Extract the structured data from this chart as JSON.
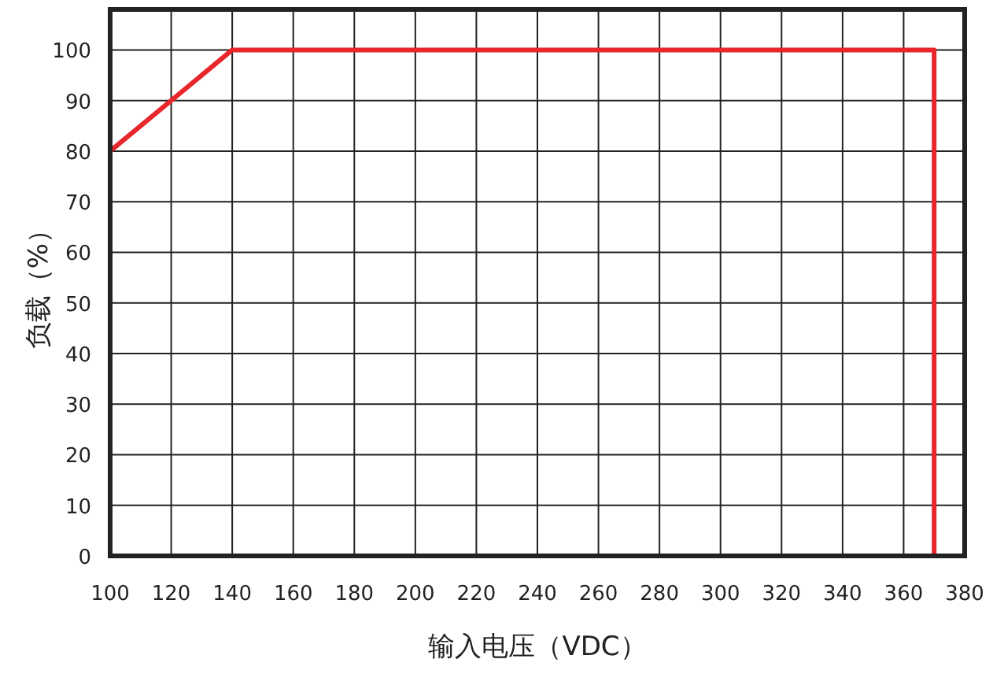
{
  "chart_data": {
    "type": "line",
    "xlabel": "输入电压（VDC）",
    "ylabel": "负载（%）",
    "x": [
      100,
      140,
      370,
      370
    ],
    "series": [
      {
        "color": "#e8262b",
        "values": [
          80,
          100,
          100,
          0
        ]
      }
    ],
    "xlim": [
      100,
      380
    ],
    "xticks": [
      100,
      120,
      140,
      160,
      180,
      200,
      220,
      240,
      260,
      280,
      300,
      320,
      340,
      360,
      380
    ],
    "ylim": [
      0,
      108
    ],
    "yticks": [
      0,
      10,
      20,
      30,
      40,
      50,
      60,
      70,
      80,
      90,
      100
    ],
    "grid": true,
    "marker": "none",
    "line_style": "solid"
  }
}
